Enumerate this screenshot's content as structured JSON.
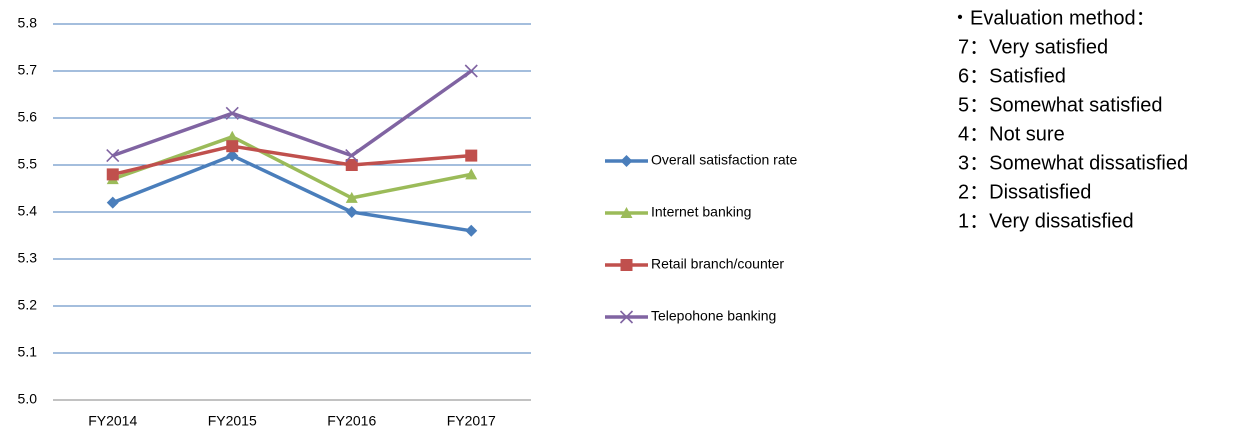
{
  "chart_data": {
    "type": "line",
    "categories": [
      "FY2014",
      "FY2015",
      "FY2016",
      "FY2017"
    ],
    "series": [
      {
        "name": "Overall satisfaction rate",
        "color": "#4a7ebb",
        "marker": "diamond",
        "values": [
          5.42,
          5.52,
          5.4,
          5.36
        ]
      },
      {
        "name": "Internet banking",
        "color": "#9bbb59",
        "marker": "triangle",
        "values": [
          5.47,
          5.56,
          5.43,
          5.48
        ]
      },
      {
        "name": "Retail branch/counter",
        "color": "#c0504d",
        "marker": "square",
        "values": [
          5.48,
          5.54,
          5.5,
          5.52
        ]
      },
      {
        "name": "Telepohone banking",
        "color": "#8064a2",
        "marker": "x",
        "values": [
          5.52,
          5.61,
          5.52,
          5.7
        ]
      }
    ],
    "ylim": [
      5.0,
      5.8
    ],
    "yticks": [
      {
        "value": 5,
        "label": "5.0"
      },
      5.1,
      5.2,
      5.3,
      5.4,
      5.5,
      5.6,
      5.7,
      5.8
    ],
    "grid": true,
    "legend": "right",
    "notes": {
      "title": "・Evaluation method：",
      "items": [
        "7：Very satisfied",
        "6：Satisfied",
        "5：Somewhat satisfied",
        "4：Not sure",
        "3：Somewhat dissatisfied",
        "2：Dissatisfied",
        "1：Very dissatisfied"
      ]
    }
  }
}
